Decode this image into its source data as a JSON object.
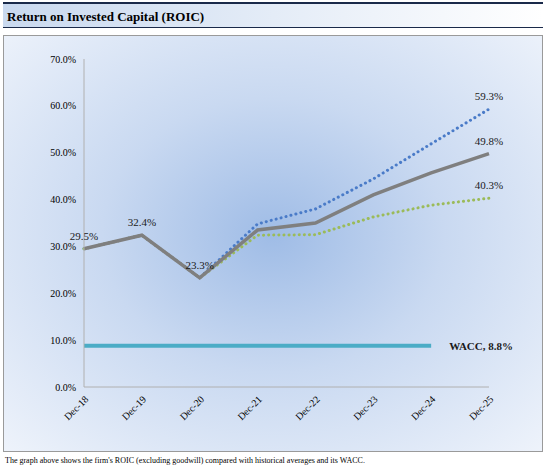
{
  "chart_data": {
    "type": "line",
    "title": "Return on Invested Capital (ROIC)",
    "caption": "The graph above shows the firm's ROIC (excluding goodwill) compared with historical averages and its WACC.",
    "categories": [
      "Dec-18",
      "Dec-19",
      "Dec-20",
      "Dec-21",
      "Dec-22",
      "Dec-23",
      "Dec-24",
      "Dec-25"
    ],
    "series": [
      {
        "color": "#4a7bc8",
        "line_style": "dotted",
        "marker": "none",
        "values": [
          29.5,
          32.4,
          23.3,
          34.8,
          38.0,
          44.4,
          51.9,
          59.3
        ],
        "data_labels": true,
        "value_labels": [
          null,
          null,
          null,
          null,
          null,
          null,
          null,
          "59.3%"
        ]
      },
      {
        "color": "#9bbb59",
        "line_style": "dotted",
        "marker": "none",
        "values": [
          29.5,
          32.4,
          23.3,
          32.4,
          32.5,
          36.3,
          38.8,
          40.3
        ],
        "data_labels": true,
        "value_labels": [
          null,
          null,
          null,
          null,
          null,
          null,
          null,
          "40.3%"
        ]
      },
      {
        "color": "#7f7f7f",
        "line_style": "solid",
        "marker": "none",
        "values": [
          29.5,
          32.4,
          23.3,
          33.5,
          35.0,
          41.0,
          45.7,
          49.8
        ],
        "data_labels": true,
        "value_labels": [
          "29.5%",
          "32.4%",
          "23.3%",
          null,
          null,
          null,
          null,
          "49.8%"
        ]
      },
      {
        "color": "#4bacc6",
        "line_style": "solid",
        "marker": "none",
        "values": [
          8.8,
          8.8,
          8.8,
          8.8,
          8.8,
          8.8,
          8.8,
          null
        ],
        "data_labels": true,
        "value_labels": [
          null,
          null,
          null,
          null,
          null,
          null,
          "WACC, 8.8%",
          null
        ]
      }
    ],
    "ylim": [
      0,
      70
    ],
    "yticks": [
      {
        "value": 0,
        "label": "0.0%"
      },
      {
        "value": 10,
        "label": "10.0%"
      },
      {
        "value": 20,
        "label": "20.0%"
      },
      {
        "value": 30,
        "label": "30.0%"
      },
      {
        "value": 40,
        "label": "40.0%"
      },
      {
        "value": 50,
        "label": "50.0%"
      },
      {
        "value": 60,
        "label": "60.0%"
      },
      {
        "value": 70,
        "label": "70.0%"
      }
    ],
    "grid": false
  }
}
